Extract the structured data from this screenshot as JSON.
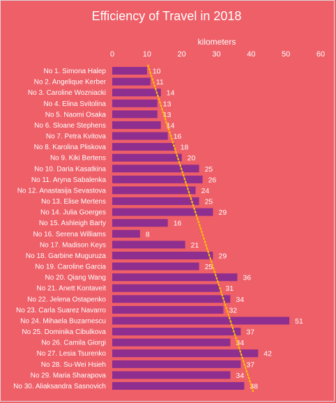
{
  "chart_data": {
    "type": "bar",
    "orientation": "horizontal",
    "title": "Efficiency of Travel in 2018",
    "xlabel": "kilometers",
    "ylabel": "",
    "xlim": [
      0,
      60
    ],
    "xticks": [
      "0",
      "10",
      "20",
      "30",
      "40",
      "50",
      "60"
    ],
    "grid": false,
    "legend": "none",
    "trendline": "linear",
    "colors": {
      "background": "#ee5f68",
      "bar": "#8e2e8e",
      "trendline": "#ffc000",
      "text": "#ffffff"
    },
    "categories": [
      "No 1. Simona Halep",
      "No 2. Angelique Kerber",
      "No 3. Caroline Wozniacki",
      "No 4. Elina Svitolina",
      "No 5. Naomi Osaka",
      "No 6. Sloane Stephens",
      "No 7. Petra Kvitova",
      "No 8. Karolina Pliskova",
      "No 9. Kiki Bertens",
      "No 10. Daria Kasatkina",
      "No 11. Aryna Sabalenka",
      "No 12. Anastasija Sevastova",
      "No 13. Elise Mertens",
      "No 14. Julia Goerges",
      "No 15. Ashleigh Barty",
      "No 16. Serena Williams",
      "No 17. Madison Keys",
      "No 18. Garbine Muguruza",
      "No 19. Caroline Garcia",
      "No 20. Qiang Wang",
      "No 21. Anett Kontaveit",
      "No 22. Jelena Ostapenko",
      "No 23. Carla Suarez Navarro",
      "No 24. Mihaela Buzarnescu",
      "No 25. Dominika Cibulkova",
      "No 26. Camila Giorgi",
      "No 27. Lesia Tsurenko",
      "No 28. Su-Wei Hsieh",
      "No 29. Maria Sharapova",
      "No 30. Aliaksandra Sasnovich"
    ],
    "values": [
      10,
      11,
      14,
      13,
      13,
      14,
      16,
      18,
      20,
      25,
      26,
      24,
      25,
      29,
      16,
      8,
      21,
      29,
      25,
      36,
      31,
      34,
      32,
      51,
      37,
      34,
      42,
      37,
      34,
      38
    ]
  }
}
